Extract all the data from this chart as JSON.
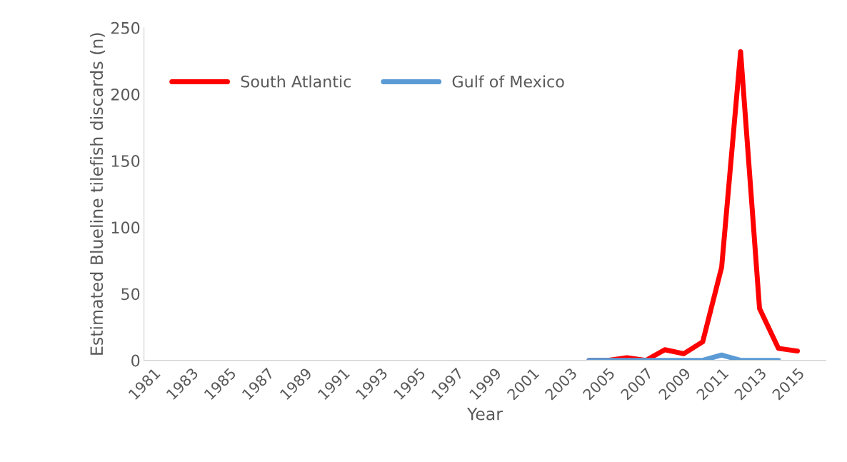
{
  "chart_data": {
    "type": "line",
    "xlabel": "Year",
    "ylabel": "Estimated Blueline tilefish discards (n)",
    "categories": [
      "1981",
      null,
      "1983",
      null,
      "1985",
      null,
      "1987",
      null,
      "1989",
      null,
      "1991",
      null,
      "1993",
      null,
      "1995",
      null,
      "1997",
      null,
      "1999",
      null,
      "2001",
      null,
      "2003",
      null,
      "2005",
      null,
      "2007",
      null,
      "2009",
      null,
      "2011",
      null,
      "2013",
      null,
      "2015",
      null
    ],
    "series": [
      {
        "name": "South Atlantic",
        "color": "#ff0000",
        "values": [
          null,
          null,
          null,
          null,
          null,
          null,
          null,
          null,
          null,
          null,
          null,
          null,
          null,
          null,
          null,
          null,
          null,
          null,
          null,
          null,
          null,
          null,
          null,
          0,
          0,
          2,
          0,
          8,
          5,
          14,
          70,
          232,
          39,
          9,
          7,
          null
        ]
      },
      {
        "name": "Gulf of Mexico",
        "color": "#5b9bd5",
        "values": [
          null,
          null,
          null,
          null,
          null,
          null,
          null,
          null,
          null,
          null,
          null,
          null,
          null,
          null,
          null,
          null,
          null,
          null,
          null,
          null,
          null,
          null,
          null,
          0,
          0,
          0,
          0,
          0,
          0,
          0,
          4,
          0,
          0,
          0,
          null,
          null
        ]
      }
    ],
    "ylim": [
      0,
      250
    ],
    "yticks": [
      0,
      50,
      100,
      150,
      200,
      250
    ],
    "grid": false,
    "legend": "top left",
    "marker": "none",
    "line_style": "solid"
  }
}
